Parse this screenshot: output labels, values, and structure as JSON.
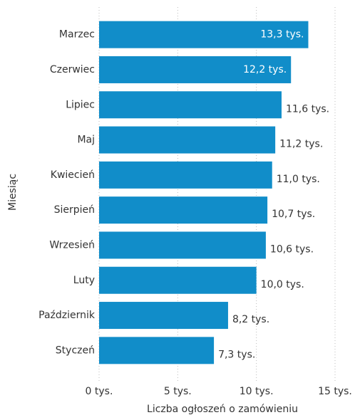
{
  "chart_data": {
    "type": "bar",
    "orientation": "horizontal",
    "categories": [
      "Marzec",
      "Czerwiec",
      "Lipiec",
      "Maj",
      "Kwiecień",
      "Sierpień",
      "Wrzesień",
      "Luty",
      "Październik",
      "Styczeń"
    ],
    "values": [
      13.3,
      12.2,
      11.6,
      11.2,
      11.0,
      10.7,
      10.6,
      10.0,
      8.2,
      7.3
    ],
    "value_labels": [
      "13,3 tys.",
      "12,2 tys.",
      "11,6 tys.",
      "11,2 tys.",
      "11,0 tys.",
      "10,7 tys.",
      "10,6 tys.",
      "10,0 tys.",
      "8,2 tys.",
      "7,3 tys."
    ],
    "color": "#118dc9",
    "xlim": [
      0,
      15
    ],
    "xticks": [
      {
        "value": 0,
        "label": "0 tys."
      },
      {
        "value": 5,
        "label": "5 tys."
      },
      {
        "value": 10,
        "label": "10 tys."
      },
      {
        "value": 15,
        "label": "15 tys."
      }
    ],
    "xlabel": "Liczba ogłoszeń o zamówieniu",
    "ylabel": "Miesiąc",
    "grid": true
  }
}
